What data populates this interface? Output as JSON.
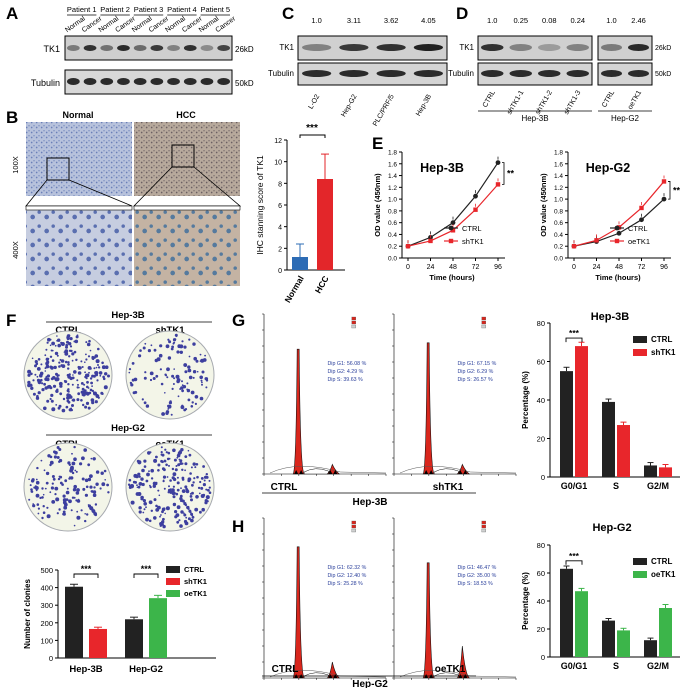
{
  "panels": {
    "A": {
      "letter": "A",
      "patients": [
        "Patient 1",
        "Patient 2",
        "Patient 3",
        "Patient 4",
        "Patient 5"
      ],
      "lanes": [
        "Normal",
        "Cancer",
        "Normal",
        "Cancer",
        "Normal",
        "Cancer",
        "Normal",
        "Cancer",
        "Normal",
        "Cancer"
      ],
      "rows": [
        "TK1",
        "Tubulin"
      ],
      "kd": [
        "26kD",
        "50kD"
      ]
    },
    "B": {
      "letter": "B",
      "headers": [
        "Normal",
        "HCC"
      ],
      "mag": [
        "100X",
        "400X"
      ],
      "chart_ylabel": "IHC stanning score of TK1",
      "ticks": [
        "0",
        "2",
        "4",
        "6",
        "8",
        "10",
        "12"
      ],
      "categories": [
        "Normal",
        "HCC"
      ],
      "sig": "***"
    },
    "C": {
      "letter": "C",
      "quant": [
        "1.0",
        "3.11",
        "3.62",
        "4.05"
      ],
      "rows": [
        "TK1",
        "Tubulin"
      ],
      "lanes": [
        "L-O2",
        "Hep-G2",
        "PLC/PRF/5",
        "Hep-3B"
      ]
    },
    "D": {
      "letter": "D",
      "quant_left": [
        "1.0",
        "0.25",
        "0.08",
        "0.24"
      ],
      "quant_right": [
        "1.0",
        "2.46"
      ],
      "rows": [
        "TK1",
        "Tubulin"
      ],
      "kd": [
        "26kD",
        "50kD"
      ],
      "lanes_left": [
        "CTRL",
        "shTK1-1",
        "shTK1-2",
        "shTK1-3"
      ],
      "lanes_right": [
        "CTRL",
        "oeTK1"
      ],
      "group_left": "Hep-3B",
      "group_right": "Hep-G2"
    },
    "E": {
      "letter": "E",
      "ylabel": "OD value (450nm)",
      "xlabel": "Time (hours)",
      "xticks": [
        "0",
        "24",
        "48",
        "72",
        "96"
      ],
      "yticks": [
        "0.0",
        "0.2",
        "0.4",
        "0.6",
        "0.8",
        "1.0",
        "1.2",
        "1.4",
        "1.6",
        "1.8"
      ],
      "left_title": "Hep-3B",
      "right_title": "Hep-G2",
      "left_legend": [
        "CTRL",
        "shTK1"
      ],
      "right_legend": [
        "CTRL",
        "oeTK1"
      ],
      "sig": "**"
    },
    "F": {
      "letter": "F",
      "top_group": "Hep-3B",
      "top_labels": [
        "CTRL",
        "shTK1"
      ],
      "mid_group": "Hep-G2",
      "mid_labels": [
        "CTRL",
        "oeTK1"
      ],
      "ylabel": "Number of clonies",
      "yticks": [
        "0",
        "100",
        "200",
        "300",
        "400",
        "500"
      ],
      "groups": [
        "Hep-3B",
        "Hep-G2"
      ],
      "legend": [
        "CTRL",
        "shTK1",
        "oeTK1"
      ],
      "sig": "***"
    },
    "G": {
      "letter": "G",
      "labels": [
        "CTRL",
        "shTK1"
      ],
      "group": "Hep-3B",
      "flow_left": [
        "Dip G1: 56.08 %",
        "Dip G2: 4.29 %",
        "Dip S: 39.63 %"
      ],
      "flow_right": [
        "Dip G1: 67.15 %",
        "Dip G2: 6.29 %",
        "Dip S: 26.57 %"
      ],
      "chart_title": "Hep-3B",
      "ylabel": "Percentage (%)",
      "yticks": [
        "0",
        "20",
        "40",
        "60",
        "80"
      ],
      "categories": [
        "G0/G1",
        "S",
        "G2/M"
      ],
      "legend": [
        "CTRL",
        "shTK1"
      ],
      "sig": "***"
    },
    "H": {
      "letter": "H",
      "labels": [
        "CTRL",
        "oeTK1"
      ],
      "group": "Hep-G2",
      "flow_left": [
        "Dip G1: 62.32 %",
        "Dip G2: 12.40 %",
        "Dip S: 25.28 %"
      ],
      "flow_right": [
        "Dip G1: 46.47 %",
        "Dip G2: 35.00 %",
        "Dip S: 18.53 %"
      ],
      "chart_title": "Hep-G2",
      "ylabel": "Percentage (%)",
      "yticks": [
        "0",
        "20",
        "40",
        "60",
        "80"
      ],
      "categories": [
        "G0/G1",
        "S",
        "G2/M"
      ],
      "legend": [
        "CTRL",
        "oeTK1"
      ],
      "sig": "***"
    }
  },
  "colors": {
    "ctrl": "#222222",
    "sh": "#e8262b",
    "oe": "#3cb54a",
    "ihc_normal": "#2d6cb5",
    "ihc_hcc": "#e3262a"
  },
  "chart_data": [
    {
      "type": "bar",
      "panel": "B",
      "categories": [
        "Normal",
        "HCC"
      ],
      "values": [
        1.2,
        8.4
      ],
      "errors": [
        1.2,
        2.3
      ],
      "ylim": [
        0,
        12
      ],
      "ylabel": "IHC stanning score of TK1"
    },
    {
      "type": "line",
      "panel": "E-left",
      "title": "Hep-3B",
      "x": [
        0,
        24,
        48,
        72,
        96
      ],
      "series": [
        {
          "name": "CTRL",
          "values": [
            0.2,
            0.35,
            0.6,
            1.05,
            1.62
          ]
        },
        {
          "name": "shTK1",
          "values": [
            0.2,
            0.29,
            0.47,
            0.82,
            1.25
          ]
        }
      ],
      "ylim": [
        0,
        1.8
      ],
      "xlabel": "Time (hours)",
      "ylabel": "OD value (450nm)"
    },
    {
      "type": "line",
      "panel": "E-right",
      "title": "Hep-G2",
      "x": [
        0,
        24,
        48,
        72,
        96
      ],
      "series": [
        {
          "name": "CTRL",
          "values": [
            0.2,
            0.28,
            0.42,
            0.65,
            1.0
          ]
        },
        {
          "name": "oeTK1",
          "values": [
            0.2,
            0.3,
            0.52,
            0.85,
            1.3
          ]
        }
      ],
      "ylim": [
        0,
        1.8
      ],
      "xlabel": "Time (hours)",
      "ylabel": "OD value (450nm)"
    },
    {
      "type": "bar",
      "panel": "F",
      "categories": [
        "Hep-3B",
        "Hep-G2"
      ],
      "series": [
        {
          "name": "CTRL",
          "values": [
            405,
            220
          ]
        },
        {
          "name": "shTK1",
          "values": [
            165,
            null
          ]
        },
        {
          "name": "oeTK1",
          "values": [
            null,
            340
          ]
        }
      ],
      "ylim": [
        0,
        500
      ],
      "ylabel": "Number of clonies"
    },
    {
      "type": "bar",
      "panel": "G",
      "title": "Hep-3B",
      "categories": [
        "G0/G1",
        "S",
        "G2/M"
      ],
      "series": [
        {
          "name": "CTRL",
          "values": [
            55,
            39,
            6
          ]
        },
        {
          "name": "shTK1",
          "values": [
            68,
            27,
            5
          ]
        }
      ],
      "ylim": [
        0,
        80
      ],
      "ylabel": "Percentage (%)"
    },
    {
      "type": "bar",
      "panel": "H",
      "title": "Hep-G2",
      "categories": [
        "G0/G1",
        "S",
        "G2/M"
      ],
      "series": [
        {
          "name": "CTRL",
          "values": [
            63,
            26,
            12
          ]
        },
        {
          "name": "oeTK1",
          "values": [
            47,
            19,
            35
          ]
        }
      ],
      "ylim": [
        0,
        80
      ],
      "ylabel": "Percentage (%)"
    }
  ]
}
